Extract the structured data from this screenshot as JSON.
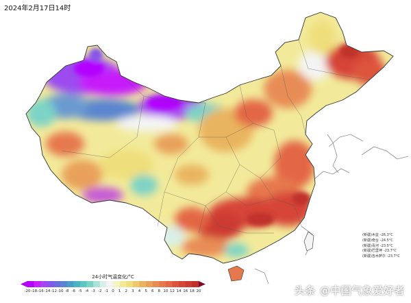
{
  "timestamp": "2024年2月17日14时",
  "legend": {
    "title": "24小时气温变化/°C",
    "ticks": [
      "-20",
      "-18",
      "-16",
      "-14",
      "-12",
      "-10",
      "-8",
      "-6",
      "-5",
      "-4",
      "-3",
      "-2",
      "-1",
      "0",
      "1",
      "2",
      "3",
      "4",
      "5",
      "6",
      "8",
      "10",
      "12",
      "14",
      "16",
      "18",
      "20"
    ],
    "colors": [
      "#b300ff",
      "#c61ffa",
      "#a845f2",
      "#8657e8",
      "#6a6ddb",
      "#5a85d0",
      "#4a9dc8",
      "#48b4c4",
      "#5bc7c0",
      "#7bd3c6",
      "#a8e2d8",
      "#d9f0ea",
      "#f4f4f4",
      "#f7f4c4",
      "#f2ea9a",
      "#efde7c",
      "#ecc96a",
      "#e9b45e",
      "#e8a05a",
      "#e88c55",
      "#e6784d",
      "#e36645",
      "#dd543e",
      "#d64537",
      "#cc3a31",
      "#c0302b"
    ]
  },
  "stations": [
    {
      "region": "(新疆)",
      "name": "木垒",
      "value": "-26.3°C"
    },
    {
      "region": "(新疆)",
      "name": "奇台",
      "value": "-24.5°C"
    },
    {
      "region": "(新疆)",
      "name": "青河",
      "value": "-23.5°C"
    },
    {
      "region": "(新疆)",
      "name": "巴里坤",
      "value": "-23.7°C"
    },
    {
      "region": "(新疆)",
      "name": "吉木萨尔",
      "value": "-23.7°C"
    }
  ],
  "watermark": "头条 @中国气象爱好者",
  "colors": {
    "purple": "#b300ff",
    "blue": "#5a85d0",
    "teal": "#7bd3c6",
    "yellow": "#f2ea9a",
    "orange": "#e8a05a",
    "red": "#d64537",
    "ocean": "#ffffff",
    "neighbor_land": "#ffffff"
  }
}
